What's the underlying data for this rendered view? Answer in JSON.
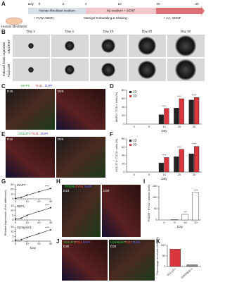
{
  "panel_labels": [
    "A",
    "B",
    "C",
    "D",
    "E",
    "F",
    "G",
    "H",
    "I",
    "J",
    "K"
  ],
  "timeline": {
    "day_label": "Day",
    "days": [
      "0",
      "2",
      "4",
      "10",
      "20",
      "30"
    ],
    "start": "Human fibroblasts",
    "stage1": "Human fibroblast medium",
    "stage1_sub": "+ FUW-ABMN",
    "stage2": "N2 medium + SCNF",
    "stage2_sub": "Matrigel Embedding & Shaking",
    "stage3": "+ AA, GDNF"
  },
  "organoids": {
    "days": [
      "Day 2",
      "Day 4",
      "Day 10",
      "Day 20",
      "Day 30"
    ],
    "lines": [
      "GM23967",
      "AG21158"
    ],
    "side_label": "Induced brain organoids"
  },
  "stains": {
    "C": [
      "MAP2",
      "TUJ1",
      "DAPI"
    ],
    "C_days": [
      "D10",
      "D20"
    ],
    "E": [
      "VGLUT1",
      "TUJ1",
      "DAPI"
    ],
    "E_days": [
      "D10",
      "D20"
    ],
    "H": [
      "PSD95",
      "SYN1",
      "DAPI"
    ],
    "H_days": [
      "D10",
      "D30"
    ],
    "J1": [
      "VGLUT2",
      "TUJ1",
      "DAPI"
    ],
    "J2": [
      "GAD65/67",
      "TUJ1",
      "DAPI"
    ],
    "J_days": [
      "D30",
      "D30"
    ]
  },
  "chart_data": [
    {
      "type": "bar",
      "y_label": "MAP2+ TUJ1+ cells (%)",
      "x_label": "Day",
      "categories": [
        "0",
        "5",
        "10",
        "20",
        "30"
      ],
      "series": [
        {
          "name": "2D",
          "color": "#222222",
          "values": [
            0,
            0,
            22,
            38,
            57
          ]
        },
        {
          "name": "3D",
          "color": "#d9363e",
          "values": [
            0,
            0,
            37,
            60,
            63
          ]
        }
      ],
      "ylim": [
        0,
        80
      ],
      "yticks": [
        0,
        20,
        40,
        60,
        80
      ],
      "annotations": [
        "****",
        "****",
        "****"
      ]
    },
    {
      "type": "bar",
      "y_label": "VGLUT1+ TUJ1+ cells (%)",
      "x_label": "Day",
      "categories": [
        "0",
        "5",
        "10",
        "20",
        "30"
      ],
      "series": [
        {
          "name": "2D",
          "color": "#222222",
          "values": [
            0,
            0,
            22,
            37,
            44
          ]
        },
        {
          "name": "3D",
          "color": "#d9363e",
          "values": [
            0,
            0,
            35,
            55,
            62
          ]
        }
      ],
      "ylim": [
        0,
        80
      ],
      "yticks": [
        0,
        20,
        40,
        60,
        80
      ],
      "annotations": [
        "****",
        "****",
        "****"
      ]
    },
    {
      "type": "line",
      "title": "MAPT",
      "x": [
        0,
        5,
        10,
        20,
        30
      ],
      "values": [
        1,
        3,
        8,
        15,
        22
      ],
      "color": "#222222",
      "xlim": [
        0,
        30
      ],
      "xticks": [
        0,
        10,
        20,
        30
      ],
      "ylim": [
        0,
        30
      ],
      "yticks": [
        0,
        10,
        20,
        30
      ],
      "annotations": [
        "****"
      ]
    },
    {
      "type": "line",
      "title": "NEFL",
      "y_label": "Relative expression (Fold difference)",
      "x": [
        0,
        5,
        10,
        20,
        30
      ],
      "values": [
        1,
        2,
        5,
        9,
        13
      ],
      "color": "#222222",
      "xlim": [
        0,
        30
      ],
      "xticks": [
        0,
        10,
        20,
        30
      ],
      "ylim": [
        0,
        15
      ],
      "yticks": [
        0,
        5,
        10,
        15
      ],
      "annotations": [
        "****"
      ]
    },
    {
      "type": "line",
      "title": "Synapsin1",
      "x_label": "Day",
      "x": [
        0,
        5,
        10,
        20,
        30
      ],
      "values": [
        1,
        1.5,
        4,
        8,
        12
      ],
      "color": "#222222",
      "xlim": [
        0,
        30
      ],
      "xticks": [
        0,
        10,
        20,
        30
      ],
      "ylim": [
        0,
        15
      ],
      "yticks": [
        0,
        5,
        10,
        15
      ],
      "annotations": [
        "****"
      ]
    },
    {
      "type": "bar",
      "y_label": "PSD95+ SYN1+ puncta (/cell)",
      "x_label": "Day",
      "categories": [
        "0",
        "5",
        "10",
        "20"
      ],
      "values": [
        0,
        2,
        25,
        120
      ],
      "color": "#ffffff",
      "ylim": [
        0,
        150
      ],
      "yticks": [
        0,
        50,
        100,
        150
      ],
      "annotations": [
        "***",
        "****"
      ]
    },
    {
      "type": "bar",
      "y_label": "Percentage of neural cells (%)",
      "categories": [
        "VGLUT+",
        "GAD65/67+"
      ],
      "values": [
        82,
        8
      ],
      "colors": [
        "#d9363e",
        "#888888"
      ],
      "ylim": [
        0,
        100
      ],
      "yticks": [
        0,
        50,
        100
      ]
    }
  ]
}
